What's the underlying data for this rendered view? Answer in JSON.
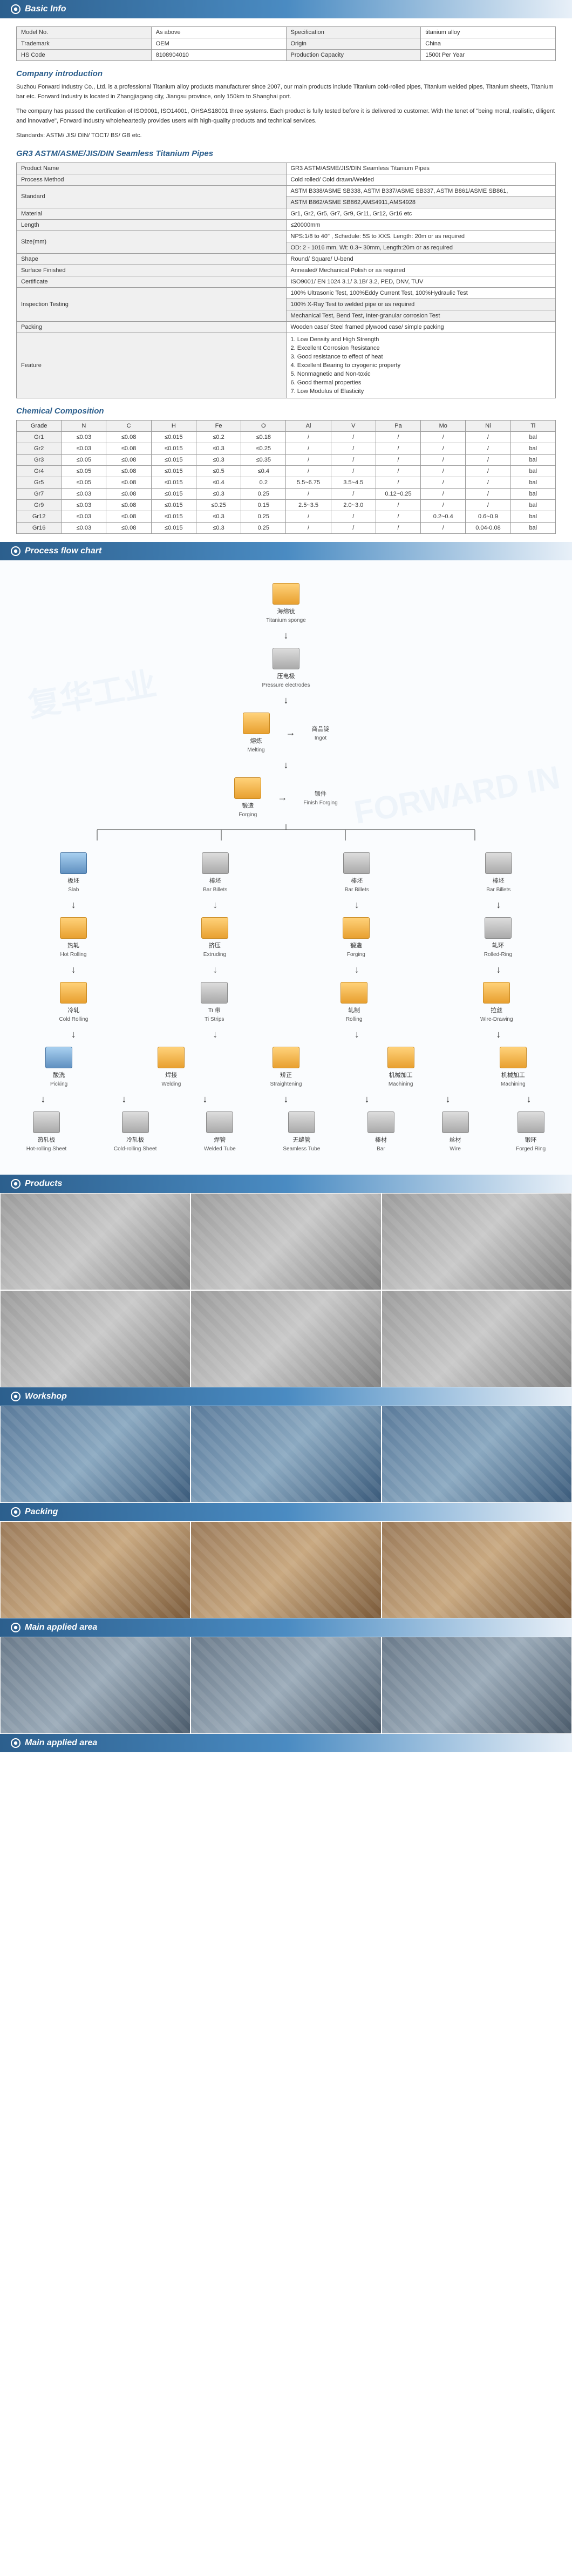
{
  "sections": {
    "basic_info": "Basic Info",
    "company_intro": "Company introduction",
    "gr3_title": "GR3 ASTM/ASME/JIS/DIN Seamless Titanium  Pipes",
    "chem": "Chemical Composition",
    "flow": "Process flow chart",
    "products": "Products",
    "workshop": "Workshop",
    "packing": "Packing",
    "main_area": "Main applied area"
  },
  "basic_info": {
    "r1c1": "Model No.",
    "r1c2": "As above",
    "r1c3": "Specification",
    "r1c4": "titanium alloy",
    "r2c1": "Trademark",
    "r2c2": "OEM",
    "r2c3": "Origin",
    "r2c4": "China",
    "r3c1": "HS Code",
    "r3c2": "8108904010",
    "r3c3": "Production Capacity",
    "r3c4": "1500t Per Year"
  },
  "intro": {
    "p1": "Suzhou Forward Industry Co., Ltd. is a professional Titanium alloy products manufacturer since 2007, our main products include Titanium cold-rolled pipes, Titanium welded pipes, Titanium sheets, Titanium bar etc. Forward Industry is located in Zhangjiagang city, Jiangsu province, only 150km to Shanghai port.",
    "p2": "The company has passed the certification of ISO9001, ISO14001, OHSAS18001 three systems. Each product is fully tested before it is delivered to customer. With the tenet of \"being moral, realistic, diligent and innovative\", Forward Industry wholeheartedly provides users with high-quality products and technical services.",
    "p3": "Standards: ASTM/ JIS/ DIN/ TOCT/ BS/ GB etc."
  },
  "spec": {
    "product_name_l": "Product Name",
    "product_name_v": "GR3 ASTM/ASME/JIS/DIN Seamless Titanium  Pipes",
    "process_l": "Process Method",
    "process_v": "Cold rolled/ Cold drawn/Welded",
    "standard_l": "Standard",
    "standard_v1": "ASTM B338/ASME SB338, ASTM B337/ASME SB337, ASTM B861/ASME SB861,",
    "standard_v2": "ASTM B862/ASME SB862,AMS4911,AMS4928",
    "material_l": "Material",
    "material_v": "Gr1, Gr2, Gr5, Gr7, Gr9, Gr11, Gr12, Gr16 etc",
    "length_l": "Length",
    "length_v": "≤20000mm",
    "size_l": "Size(mm)",
    "size_v1": "NPS:1/8 to 40\" , Schedule: 5S to XXS. Length: 20m or as required",
    "size_v2": "OD: 2 - 1016 mm, Wt: 0.3~ 30mm, Length:20m or as required",
    "shape_l": "Shape",
    "shape_v": "Round/ Square/ U-bend",
    "surface_l": "Surface Finished",
    "surface_v": "Annealed/ Mechanical Polish or as required",
    "cert_l": "Certificate",
    "cert_v": "ISO9001/ EN 1024 3.1/ 3.1B/ 3.2, PED, DNV, TUV",
    "insp_l": "Inspection Testing",
    "insp_v1": "100% Ultrasonic Test, 100%Eddy Current Test, 100%Hydraulic Test",
    "insp_v2": "100% X-Ray Test to welded pipe or as required",
    "insp_v3": "Mechanical Test, Bend Test, Inter-granular corrosion Test",
    "pack_l": "Packing",
    "pack_v": "Wooden case/ Steel framed plywood case/ simple packing",
    "feature_l": "Feature",
    "f1": "1. Low Density and High Strength",
    "f2": "2. Excellent Corrosion Resistance",
    "f3": "3. Good resistance to effect of heat",
    "f4": "4. Excellent Bearing to cryogenic property",
    "f5": "5. Nonmagnetic and Non-toxic",
    "f6": "6. Good thermal properties",
    "f7": "7. Low Modulus of Elasticity"
  },
  "chem_headers": [
    "Grade",
    "N",
    "C",
    "H",
    "Fe",
    "O",
    "Al",
    "V",
    "Pa",
    "Mo",
    "Ni",
    "Ti"
  ],
  "chem_rows": [
    [
      "Gr1",
      "≤0.03",
      "≤0.08",
      "≤0.015",
      "≤0.2",
      "≤0.18",
      "/",
      "/",
      "/",
      "/",
      "/",
      "bal"
    ],
    [
      "Gr2",
      "≤0.03",
      "≤0.08",
      "≤0.015",
      "≤0.3",
      "≤0.25",
      "/",
      "/",
      "/",
      "/",
      "/",
      "bal"
    ],
    [
      "Gr3",
      "≤0.05",
      "≤0.08",
      "≤0.015",
      "≤0.3",
      "≤0.35",
      "/",
      "/",
      "/",
      "/",
      "/",
      "bal"
    ],
    [
      "Gr4",
      "≤0.05",
      "≤0.08",
      "≤0.015",
      "≤0.5",
      "≤0.4",
      "/",
      "/",
      "/",
      "/",
      "/",
      "bal"
    ],
    [
      "Gr5",
      "≤0.05",
      "≤0.08",
      "≤0.015",
      "≤0.4",
      "0.2",
      "5.5~6.75",
      "3.5~4.5",
      "/",
      "/",
      "/",
      "bal"
    ],
    [
      "Gr7",
      "≤0.03",
      "≤0.08",
      "≤0.015",
      "≤0.3",
      "0.25",
      "/",
      "/",
      "0.12~0.25",
      "/",
      "/",
      "bal"
    ],
    [
      "Gr9",
      "≤0.03",
      "≤0.08",
      "≤0.015",
      "≤0.25",
      "0.15",
      "2.5~3.5",
      "2.0~3.0",
      "/",
      "/",
      "/",
      "bal"
    ],
    [
      "Gr12",
      "≤0.03",
      "≤0.08",
      "≤0.015",
      "≤0.3",
      "0.25",
      "/",
      "/",
      "/",
      "0.2~0.4",
      "0.6~0.9",
      "bal"
    ],
    [
      "Gr16",
      "≤0.03",
      "≤0.08",
      "≤0.015",
      "≤0.3",
      "0.25",
      "/",
      "/",
      "/",
      "/",
      "0.04-0.08",
      "bal"
    ]
  ],
  "flow": {
    "n1_cn": "海绵钛",
    "n1_en": "Titanium sponge",
    "n2_cn": "压电极",
    "n2_en": "Pressure electrodes",
    "n3_cn": "熔炼",
    "n3_en": "Melting",
    "n3b_cn": "商品锭",
    "n3b_en": "Ingot",
    "n4_cn": "锻造",
    "n4_en": "Forging",
    "n4b_cn": "锻件",
    "n4b_en": "Finish Forging",
    "b1_cn": "板坯",
    "b1_en": "Slab",
    "b2_cn": "棒坯",
    "b2_en": "Bar Billets",
    "b3_cn": "棒坯",
    "b3_en": "Bar Billets",
    "b4_cn": "棒坯",
    "b4_en": "Bar Billets",
    "hr_cn": "热轧",
    "hr_en": "Hot Rolling",
    "ex_cn": "挤压",
    "ex_en": "Extruding",
    "fg_cn": "锻造",
    "fg_en": "Forging",
    "rr_cn": "轧环",
    "rr_en": "Rolled-Ring",
    "cr_cn": "冷轧",
    "cr_en": "Cold Rolling",
    "ts_cn": "Ti 带",
    "ts_en": "Ti Strips",
    "rl_cn": "轧制",
    "rl_en": "Rolling",
    "wd_cn": "拉丝",
    "wd_en": "Wire-Drawing",
    "pk_cn": "酸洗",
    "pk_en": "Picking",
    "we_cn": "焊接",
    "we_en": "Welding",
    "st_cn": "矫正",
    "st_en": "Straightening",
    "mc_cn": "机械加工",
    "mc_en": "Machining",
    "mc2_cn": "机械加工",
    "mc2_en": "Machining",
    "p1_cn": "热轧板",
    "p1_en": "Hot-rolling Sheet",
    "p2_cn": "冷轧板",
    "p2_en": "Cold-rolling Sheet",
    "p3_cn": "焊管",
    "p3_en": "Welded Tube",
    "p4_cn": "无缝管",
    "p4_en": "Seamless Tube",
    "p5_cn": "棒材",
    "p5_en": "Bar",
    "p6_cn": "丝材",
    "p6_en": "Wire",
    "p7_cn": "锻环",
    "p7_en": "Forged Ring"
  },
  "watermark": "FORWARD IN"
}
